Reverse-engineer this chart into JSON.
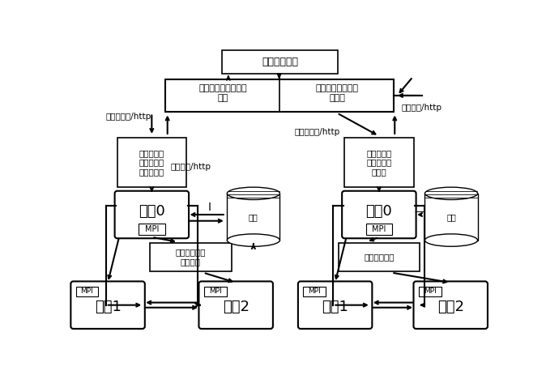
{
  "bg_color": "#ffffff",
  "top_box": {
    "label": "耦合控制设置"
  },
  "client_left_label": "多孔介质远程调用客\n户端",
  "client_right_label": "主流计算远程调用\n客户端",
  "server_left_label": "多孔介质计\n算远程调用\n服务端进程",
  "server_right_label": "主流计算远\n程调用服务\n端进程",
  "proc0_label": "进程0",
  "mpi_label": "MPI",
  "module_left_label": "多孔介质流动\n计算模块",
  "module_right_label": "主流计算模块",
  "proc1_label": "进程1",
  "proc2_label": "进程2",
  "storage_label": "存储",
  "arrow_label_1": "指令及参数/http",
  "arrow_label_2": "响应结果/http",
  "arrow_label_3": "指令及参数/http",
  "arrow_label_4": "响应结果/http"
}
